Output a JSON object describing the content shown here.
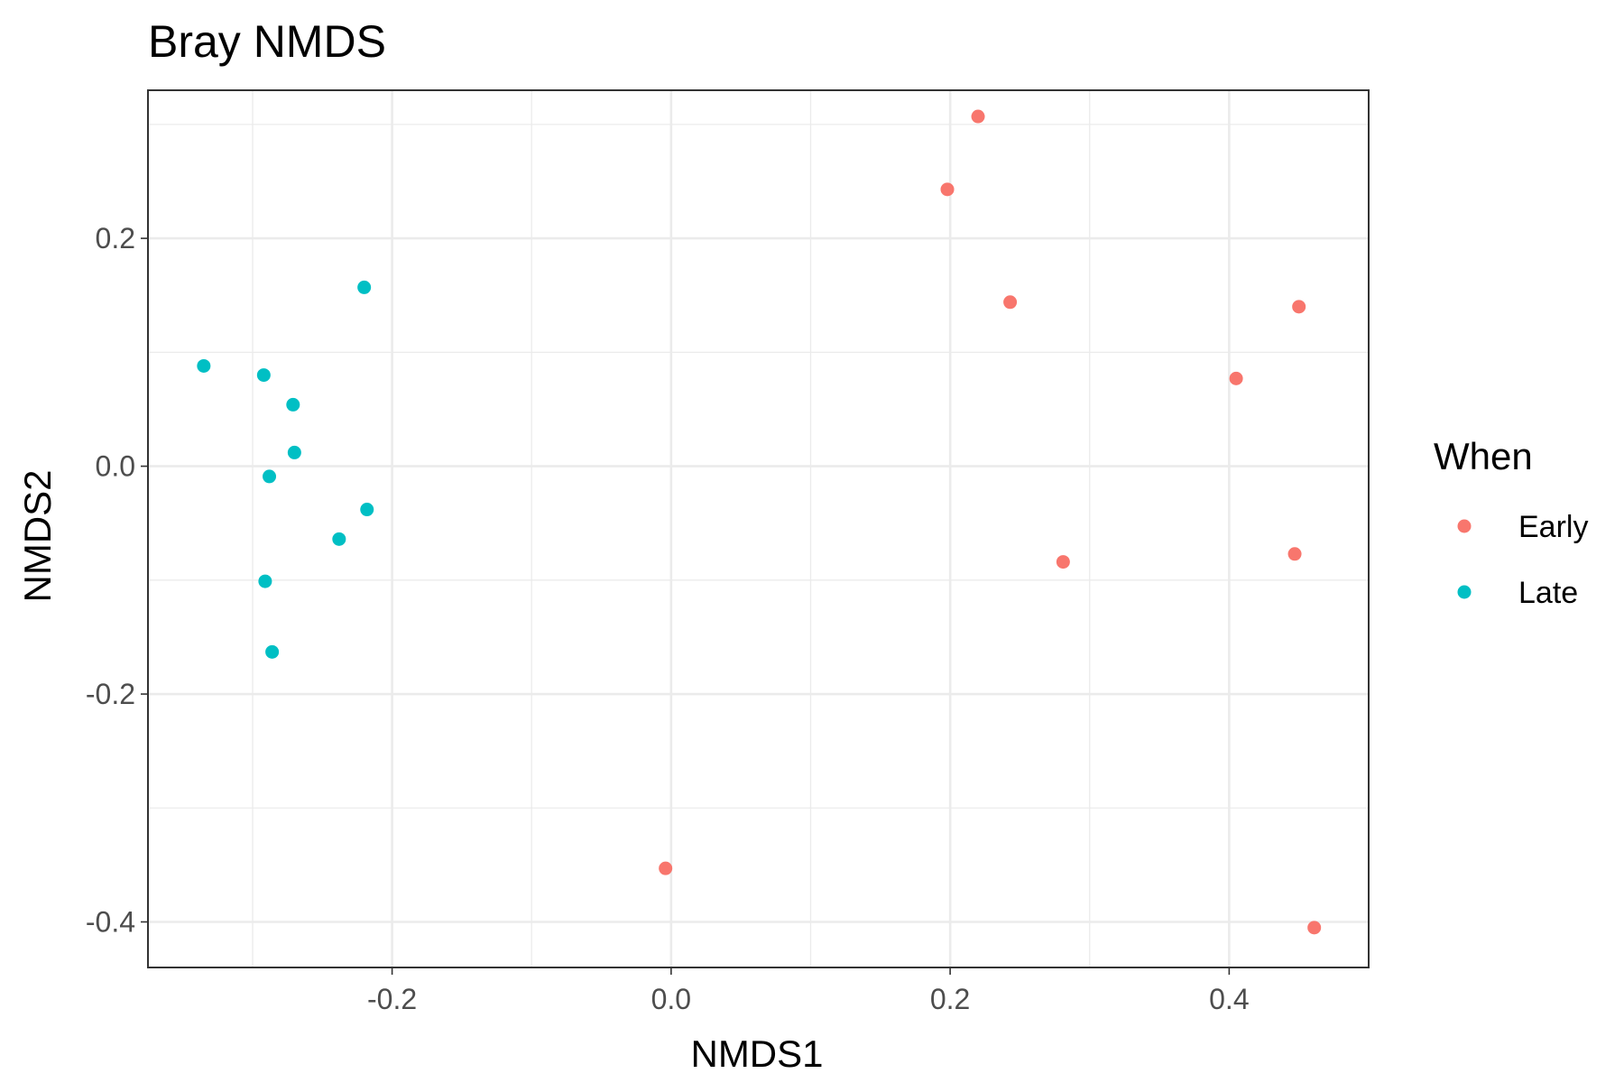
{
  "chart_data": {
    "type": "scatter",
    "title": "Bray NMDS",
    "xlabel": "NMDS1",
    "ylabel": "NMDS2",
    "xlim": [
      -0.375,
      0.5
    ],
    "ylim": [
      -0.44,
      0.33
    ],
    "x_ticks": [
      -0.2,
      0.0,
      0.2,
      0.4
    ],
    "x_tick_labels": [
      "-0.2",
      "0.0",
      "0.2",
      "0.4"
    ],
    "y_ticks": [
      0.2,
      0.0,
      -0.2,
      -0.4
    ],
    "y_tick_labels": [
      "0.2",
      "0.0",
      "-0.2",
      "-0.4"
    ],
    "grid": true,
    "legend": {
      "title": "When",
      "position": "right"
    },
    "series": [
      {
        "name": "Early",
        "color": "#F8766D",
        "points": [
          {
            "x": 0.22,
            "y": 0.307
          },
          {
            "x": 0.198,
            "y": 0.243
          },
          {
            "x": 0.243,
            "y": 0.144
          },
          {
            "x": 0.45,
            "y": 0.14
          },
          {
            "x": 0.405,
            "y": 0.077
          },
          {
            "x": 0.281,
            "y": -0.084
          },
          {
            "x": 0.447,
            "y": -0.077
          },
          {
            "x": -0.004,
            "y": -0.353
          },
          {
            "x": 0.461,
            "y": -0.405
          }
        ]
      },
      {
        "name": "Late",
        "color": "#00BFC4",
        "points": [
          {
            "x": -0.22,
            "y": 0.157
          },
          {
            "x": -0.335,
            "y": 0.088
          },
          {
            "x": -0.292,
            "y": 0.08
          },
          {
            "x": -0.271,
            "y": 0.054
          },
          {
            "x": -0.27,
            "y": 0.012
          },
          {
            "x": -0.288,
            "y": -0.009
          },
          {
            "x": -0.218,
            "y": -0.038
          },
          {
            "x": -0.238,
            "y": -0.064
          },
          {
            "x": -0.291,
            "y": -0.101
          },
          {
            "x": -0.286,
            "y": -0.163
          }
        ]
      }
    ]
  }
}
